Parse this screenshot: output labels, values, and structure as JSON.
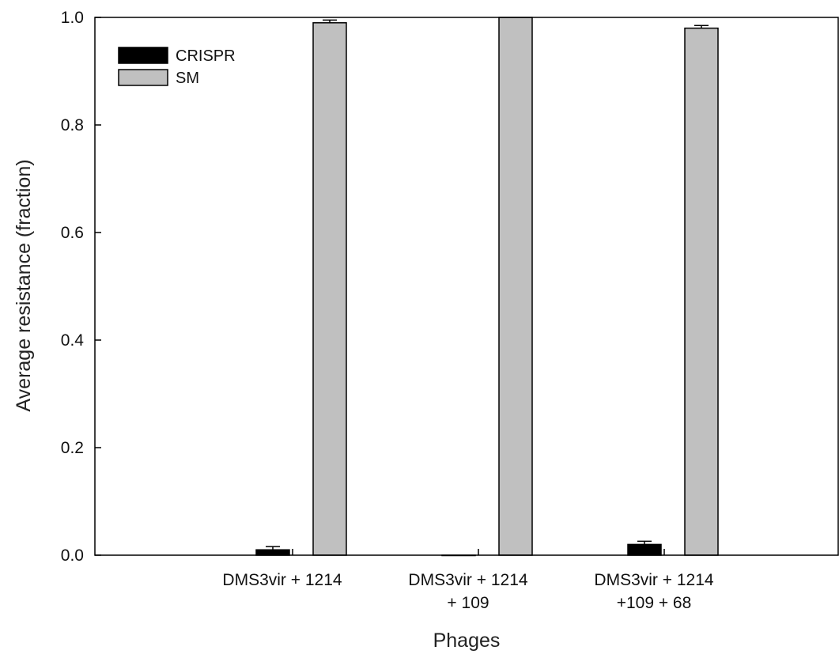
{
  "chart_data": {
    "type": "bar",
    "categories": [
      [
        "DMS3vir + 1214"
      ],
      [
        "DMS3vir + 1214",
        "+ 109"
      ],
      [
        "DMS3vir + 1214",
        "+109 + 68"
      ]
    ],
    "series": [
      {
        "name": "CRISPR",
        "color": "#000000",
        "values": [
          0.01,
          0.0,
          0.02
        ],
        "errors": [
          0.006,
          0.0,
          0.006
        ]
      },
      {
        "name": "SM",
        "color": "#c0c0c0",
        "values": [
          0.99,
          1.0,
          0.98
        ],
        "errors": [
          0.005,
          0.0,
          0.005
        ]
      }
    ],
    "xlabel": "Phages",
    "ylabel": "Average resistance (fraction)",
    "ylim": [
      0,
      1.0
    ],
    "yticks": [
      "0.0",
      "0.2",
      "0.4",
      "0.6",
      "0.8",
      "1.0"
    ],
    "legend_position": "top-left",
    "grid": false
  }
}
